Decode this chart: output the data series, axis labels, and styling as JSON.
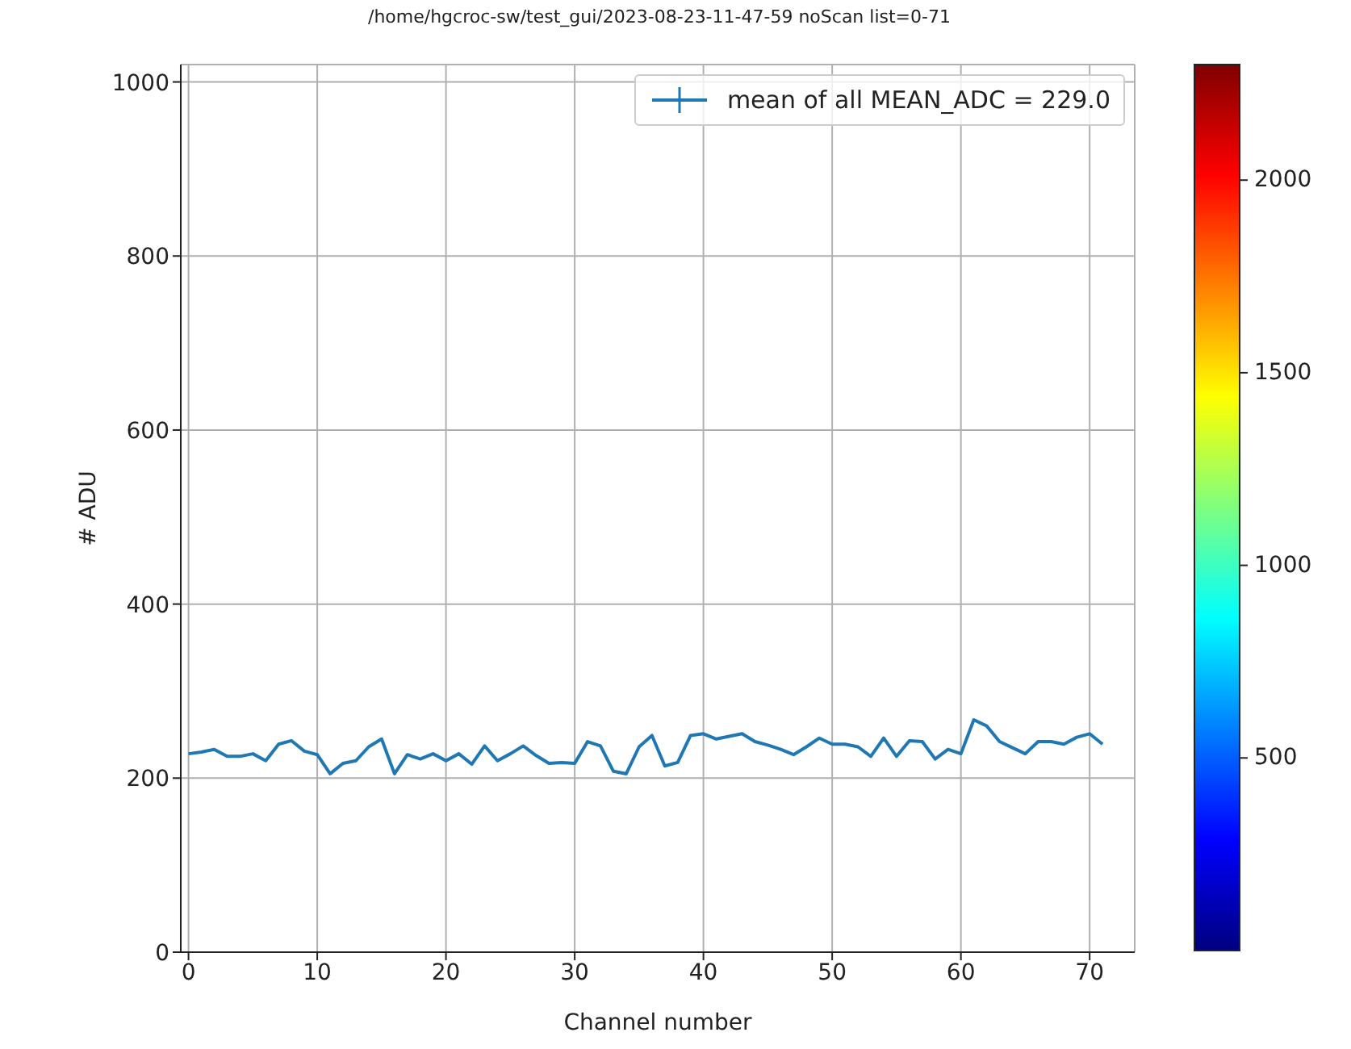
{
  "chart_data": {
    "type": "line",
    "title": "/home/hgcroc-sw/test_gui/2023-08-23-11-47-59 noScan list=0-71",
    "xlabel": "Channel number",
    "ylabel": "# ADU",
    "x": [
      0,
      1,
      2,
      3,
      4,
      5,
      6,
      7,
      8,
      9,
      10,
      11,
      12,
      13,
      14,
      15,
      16,
      17,
      18,
      19,
      20,
      21,
      22,
      23,
      24,
      25,
      26,
      27,
      28,
      29,
      30,
      31,
      32,
      33,
      34,
      35,
      36,
      37,
      38,
      39,
      40,
      41,
      42,
      43,
      44,
      45,
      46,
      47,
      48,
      49,
      50,
      51,
      52,
      53,
      54,
      55,
      56,
      57,
      58,
      59,
      60,
      61,
      62,
      63,
      64,
      65,
      66,
      67,
      68,
      69,
      70,
      71
    ],
    "series": [
      {
        "name": "mean of all MEAN_ADC = 229.0",
        "color": "#1f77b4",
        "values": [
          228,
          230,
          233,
          225,
          225,
          228,
          220,
          239,
          243,
          231,
          227,
          205,
          217,
          220,
          236,
          245,
          205,
          227,
          222,
          228,
          220,
          228,
          216,
          237,
          220,
          228,
          237,
          226,
          217,
          218,
          217,
          242,
          237,
          208,
          205,
          236,
          249,
          214,
          218,
          249,
          251,
          245,
          248,
          251,
          242,
          238,
          233,
          227,
          236,
          246,
          239,
          239,
          236,
          225,
          246,
          225,
          243,
          242,
          222,
          233,
          228,
          267,
          260,
          242,
          235,
          228,
          242,
          242,
          239,
          247,
          251,
          239
        ]
      }
    ],
    "xlim": [
      -0.6,
      73.5
    ],
    "xticks": [
      0,
      10,
      20,
      30,
      40,
      50,
      60,
      70
    ],
    "ylim": [
      0,
      1020
    ],
    "yticks": [
      0,
      200,
      400,
      600,
      800,
      1000
    ],
    "clim": [
      0,
      2300
    ],
    "cticks": [
      500,
      1000,
      1500,
      2000
    ],
    "grid": true,
    "legend": "top right",
    "marker": "none",
    "line_style": "solid"
  }
}
